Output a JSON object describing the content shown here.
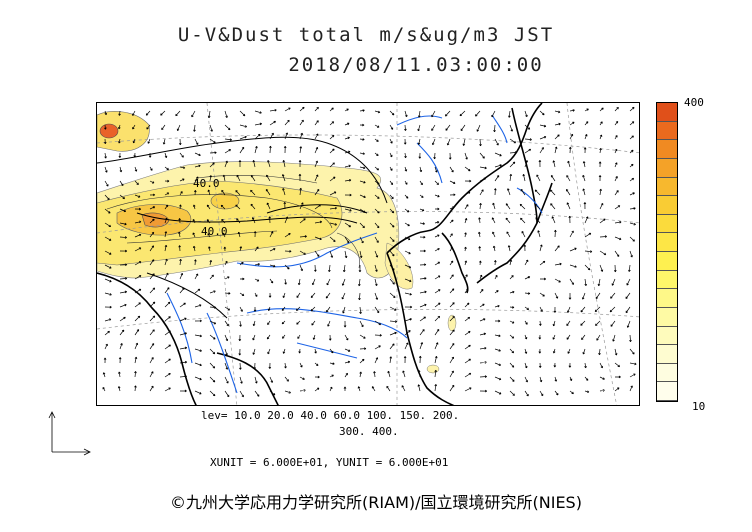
{
  "title_line1": "U-V&Dust total m/s&ug/m3 JST",
  "title_line2": "2018/08/11.03:00:00",
  "contour_labels": [
    "40.0",
    "40.0"
  ],
  "colorbar": {
    "max_label": "400",
    "min_label": "10",
    "colors": [
      "#e0501a",
      "#ea6a1e",
      "#f08a22",
      "#f4a228",
      "#f7b82e",
      "#f9cc34",
      "#fbdb3c",
      "#fde646",
      "#fef050",
      "#fef66a",
      "#fef888",
      "#fefaa4",
      "#fefbbc",
      "#fefcd0",
      "#fefde0",
      "#fffeec"
    ]
  },
  "legend": {
    "lev_line1": "lev= 10.0 20.0 40.0 60.0 100. 150. 200.",
    "lev_line2": "300. 400.",
    "unit_line": "XUNIT = 6.000E+01, YUNIT = 6.000E+01"
  },
  "credit": "©九州大学応用力学研究所(RIAM)/国立環境研究所(NIES)"
}
